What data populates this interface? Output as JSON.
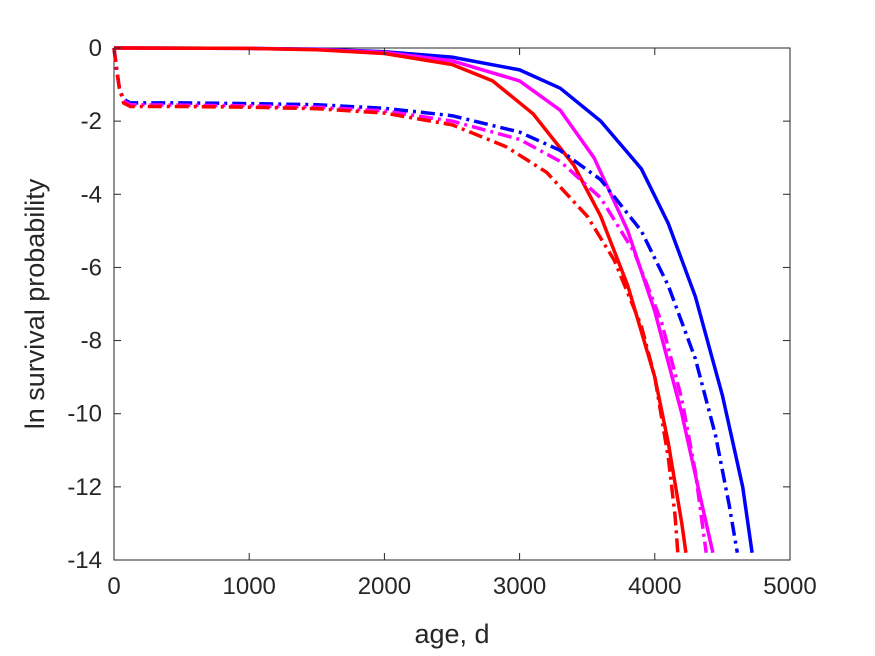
{
  "chart_data": {
    "type": "line",
    "title": "",
    "xlabel": "age, d",
    "ylabel": "ln survival probability",
    "xlim": [
      0,
      5000
    ],
    "ylim": [
      -14,
      0
    ],
    "xticks": [
      0,
      1000,
      2000,
      3000,
      4000,
      5000
    ],
    "yticks": [
      0,
      -2,
      -4,
      -6,
      -8,
      -10,
      -12,
      -14
    ],
    "xtick_labels": [
      "0",
      "1000",
      "2000",
      "3000",
      "4000",
      "5000"
    ],
    "ytick_labels": [
      "0",
      "-2",
      "-4",
      "-6",
      "-8",
      "-10",
      "-12",
      "-14"
    ],
    "grid": false,
    "series": [
      {
        "color": "#0000ff",
        "style": "solid",
        "points": [
          [
            0,
            0
          ],
          [
            1000,
            -0.01
          ],
          [
            1500,
            -0.03
          ],
          [
            2000,
            -0.1
          ],
          [
            2500,
            -0.25
          ],
          [
            3000,
            -0.6
          ],
          [
            3300,
            -1.1
          ],
          [
            3600,
            -2.0
          ],
          [
            3900,
            -3.3
          ],
          [
            4100,
            -4.8
          ],
          [
            4300,
            -6.8
          ],
          [
            4500,
            -9.5
          ],
          [
            4650,
            -12.0
          ],
          [
            4720,
            -13.8
          ]
        ]
      },
      {
        "color": "#ff00ff",
        "style": "solid",
        "points": [
          [
            0,
            0
          ],
          [
            1000,
            -0.01
          ],
          [
            1500,
            -0.04
          ],
          [
            2000,
            -0.12
          ],
          [
            2500,
            -0.35
          ],
          [
            3000,
            -0.9
          ],
          [
            3300,
            -1.7
          ],
          [
            3550,
            -3.0
          ],
          [
            3800,
            -5.0
          ],
          [
            4000,
            -7.2
          ],
          [
            4200,
            -10.0
          ],
          [
            4350,
            -12.5
          ],
          [
            4430,
            -13.8
          ]
        ]
      },
      {
        "color": "#ff0000",
        "style": "solid",
        "points": [
          [
            0,
            0
          ],
          [
            1000,
            -0.01
          ],
          [
            1500,
            -0.05
          ],
          [
            2000,
            -0.15
          ],
          [
            2500,
            -0.45
          ],
          [
            2800,
            -0.9
          ],
          [
            3100,
            -1.8
          ],
          [
            3400,
            -3.2
          ],
          [
            3600,
            -4.6
          ],
          [
            3800,
            -6.5
          ],
          [
            4000,
            -9.0
          ],
          [
            4100,
            -10.8
          ],
          [
            4200,
            -13.0
          ],
          [
            4230,
            -13.8
          ]
        ]
      },
      {
        "color": "#0000ff",
        "style": "dashdot",
        "points": [
          [
            0,
            0
          ],
          [
            20,
            -0.6
          ],
          [
            40,
            -1.1
          ],
          [
            70,
            -1.4
          ],
          [
            120,
            -1.5
          ],
          [
            500,
            -1.5
          ],
          [
            1000,
            -1.52
          ],
          [
            1500,
            -1.55
          ],
          [
            2000,
            -1.65
          ],
          [
            2500,
            -1.85
          ],
          [
            3000,
            -2.3
          ],
          [
            3300,
            -2.8
          ],
          [
            3600,
            -3.6
          ],
          [
            3900,
            -5.0
          ],
          [
            4100,
            -6.5
          ],
          [
            4300,
            -8.5
          ],
          [
            4450,
            -10.6
          ],
          [
            4550,
            -12.5
          ],
          [
            4610,
            -13.8
          ]
        ]
      },
      {
        "color": "#ff00ff",
        "style": "dashdot",
        "points": [
          [
            0,
            0
          ],
          [
            20,
            -0.6
          ],
          [
            40,
            -1.1
          ],
          [
            70,
            -1.45
          ],
          [
            120,
            -1.55
          ],
          [
            500,
            -1.56
          ],
          [
            1000,
            -1.58
          ],
          [
            1500,
            -1.62
          ],
          [
            2000,
            -1.72
          ],
          [
            2500,
            -2.0
          ],
          [
            3000,
            -2.5
          ],
          [
            3300,
            -3.1
          ],
          [
            3600,
            -4.1
          ],
          [
            3850,
            -5.6
          ],
          [
            4050,
            -7.5
          ],
          [
            4200,
            -9.6
          ],
          [
            4300,
            -11.6
          ],
          [
            4380,
            -13.8
          ]
        ]
      },
      {
        "color": "#ff0000",
        "style": "dashdot",
        "points": [
          [
            0,
            0
          ],
          [
            20,
            -0.6
          ],
          [
            40,
            -1.1
          ],
          [
            70,
            -1.5
          ],
          [
            120,
            -1.6
          ],
          [
            500,
            -1.6
          ],
          [
            1000,
            -1.62
          ],
          [
            1500,
            -1.66
          ],
          [
            2000,
            -1.78
          ],
          [
            2500,
            -2.1
          ],
          [
            2900,
            -2.7
          ],
          [
            3200,
            -3.4
          ],
          [
            3500,
            -4.6
          ],
          [
            3700,
            -5.8
          ],
          [
            3900,
            -7.6
          ],
          [
            4000,
            -9.0
          ],
          [
            4100,
            -11.2
          ],
          [
            4150,
            -12.8
          ],
          [
            4170,
            -13.8
          ]
        ]
      }
    ]
  }
}
